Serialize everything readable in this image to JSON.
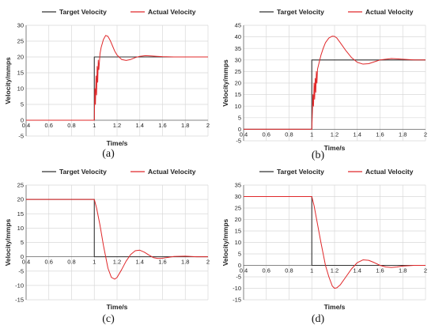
{
  "chart_data": [
    {
      "panel": "a",
      "caption": "(a)",
      "type": "line",
      "xlabel": "Time/s",
      "ylabel": "Velocity/mmps",
      "xlim": [
        0.4,
        2
      ],
      "ylim": [
        -5,
        30
      ],
      "xticks": [
        "0.4",
        "0.6",
        "0.8",
        "1",
        "1.2",
        "1.4",
        "1.6",
        "1.8",
        "2"
      ],
      "yticks": [
        "-5",
        "0",
        "5",
        "10",
        "15",
        "20",
        "25",
        "30"
      ],
      "series": [
        {
          "name": "Target Velocity",
          "color": "#333333",
          "x": [
            0.4,
            1.0,
            1.0,
            2.0
          ],
          "y": [
            0,
            0,
            20,
            20
          ]
        },
        {
          "name": "Actual Velocity",
          "color": "#e0282a",
          "x": [
            0.4,
            1.0,
            1.005,
            1.01,
            1.015,
            1.02,
            1.025,
            1.03,
            1.035,
            1.04,
            1.05,
            1.06,
            1.08,
            1.1,
            1.12,
            1.14,
            1.16,
            1.18,
            1.2,
            1.24,
            1.28,
            1.32,
            1.36,
            1.4,
            1.45,
            1.5,
            1.55,
            1.6,
            1.7,
            1.8,
            2.0
          ],
          "y": [
            0,
            0,
            10,
            5,
            14,
            8,
            17,
            12,
            19,
            16,
            21,
            23,
            25.5,
            26.8,
            26.5,
            25.2,
            23.5,
            21.8,
            20.6,
            19.2,
            18.9,
            19.2,
            19.8,
            20.2,
            20.4,
            20.3,
            20.2,
            20.1,
            20.0,
            20.0,
            20.0
          ]
        }
      ]
    },
    {
      "panel": "b",
      "caption": "(b)",
      "type": "line",
      "xlabel": "Time/s",
      "ylabel": "Velocity/mmps",
      "xlim": [
        0.4,
        2
      ],
      "ylim": [
        -5,
        45
      ],
      "xticks": [
        "0.4",
        "0.6",
        "0.8",
        "1",
        "1.2",
        "1.4",
        "1.6",
        "1.8",
        "2"
      ],
      "yticks": [
        "-5",
        "0",
        "5",
        "10",
        "15",
        "20",
        "25",
        "30",
        "35",
        "40",
        "45"
      ],
      "series": [
        {
          "name": "Target Velocity",
          "color": "#333333",
          "x": [
            0.4,
            1.0,
            1.0,
            2.0
          ],
          "y": [
            0,
            0,
            30,
            30
          ]
        },
        {
          "name": "Actual Velocity",
          "color": "#e0282a",
          "x": [
            0.4,
            1.0,
            1.01,
            1.015,
            1.02,
            1.025,
            1.03,
            1.035,
            1.04,
            1.045,
            1.05,
            1.06,
            1.08,
            1.1,
            1.12,
            1.15,
            1.18,
            1.2,
            1.22,
            1.25,
            1.3,
            1.35,
            1.4,
            1.45,
            1.5,
            1.55,
            1.6,
            1.7,
            1.75,
            1.8,
            1.9,
            2.0
          ],
          "y": [
            0,
            0,
            15,
            10,
            20,
            13,
            22,
            16,
            25,
            20,
            26,
            28,
            32,
            35,
            37.5,
            39.5,
            40.3,
            40.2,
            39.5,
            37.5,
            34,
            31,
            29,
            28.2,
            28.4,
            29.2,
            30,
            30.6,
            30.5,
            30.3,
            30.0,
            30.0
          ]
        }
      ]
    },
    {
      "panel": "c",
      "caption": "(c)",
      "type": "line",
      "xlabel": "Time/s",
      "ylabel": "Velocity/mmps",
      "xlim": [
        0.4,
        2
      ],
      "ylim": [
        -15,
        25
      ],
      "xticks": [
        "0.4",
        "0.6",
        "0.8",
        "1",
        "1.2",
        "1.4",
        "1.6",
        "1.8",
        "2"
      ],
      "yticks": [
        "-15",
        "-10",
        "-5",
        "0",
        "5",
        "10",
        "15",
        "20",
        "25"
      ],
      "series": [
        {
          "name": "Target Velocity",
          "color": "#333333",
          "x": [
            0.4,
            1.0,
            1.0,
            2.0
          ],
          "y": [
            20,
            20,
            0,
            0
          ]
        },
        {
          "name": "Actual Velocity",
          "color": "#e0282a",
          "x": [
            0.4,
            1.0,
            1.02,
            1.05,
            1.08,
            1.1,
            1.12,
            1.15,
            1.18,
            1.2,
            1.24,
            1.28,
            1.32,
            1.36,
            1.4,
            1.44,
            1.48,
            1.52,
            1.56,
            1.6,
            1.65,
            1.7,
            1.8,
            1.9,
            2.0
          ],
          "y": [
            20,
            20,
            17,
            11,
            4,
            0,
            -4,
            -7.2,
            -7.8,
            -7.2,
            -4.5,
            -1.5,
            0.8,
            2.1,
            2.3,
            1.6,
            0.6,
            -0.3,
            -0.6,
            -0.5,
            -0.2,
            0.1,
            0.2,
            0.0,
            0.0
          ]
        }
      ]
    },
    {
      "panel": "d",
      "caption": "(d)",
      "type": "line",
      "xlabel": "Time/s",
      "ylabel": "Velocity/mmps",
      "xlim": [
        0.4,
        2
      ],
      "ylim": [
        -15,
        35
      ],
      "xticks": [
        "0.4",
        "0.6",
        "0.8",
        "1",
        "1.2",
        "1.4",
        "1.6",
        "1.8",
        "2"
      ],
      "yticks": [
        "-15",
        "-10",
        "-5",
        "0",
        "5",
        "10",
        "15",
        "20",
        "25",
        "30",
        "35"
      ],
      "series": [
        {
          "name": "Target Velocity",
          "color": "#333333",
          "x": [
            0.4,
            1.0,
            1.0,
            2.0
          ],
          "y": [
            30,
            30,
            0,
            0
          ]
        },
        {
          "name": "Actual Velocity",
          "color": "#e0282a",
          "x": [
            0.4,
            1.0,
            1.02,
            1.05,
            1.08,
            1.1,
            1.12,
            1.15,
            1.18,
            1.2,
            1.22,
            1.25,
            1.3,
            1.35,
            1.4,
            1.45,
            1.5,
            1.55,
            1.6,
            1.65,
            1.7,
            1.75,
            1.8,
            1.9,
            2.0
          ],
          "y": [
            30,
            30,
            26,
            18,
            10,
            5,
            0,
            -5,
            -9,
            -10,
            -9.8,
            -8.5,
            -5,
            -1.5,
            1.2,
            2.4,
            2.2,
            1.2,
            0,
            -0.7,
            -0.9,
            -0.7,
            -0.3,
            0.0,
            0.0
          ]
        }
      ]
    }
  ]
}
